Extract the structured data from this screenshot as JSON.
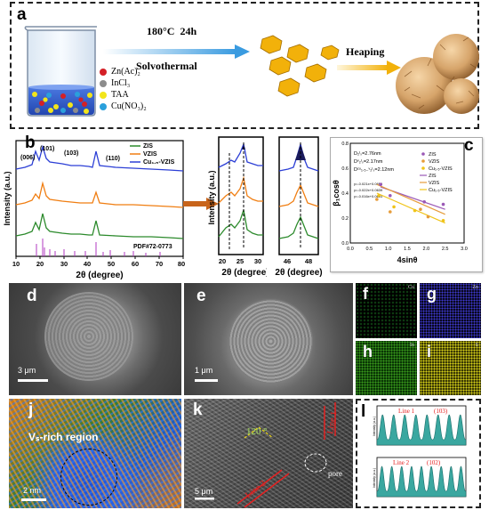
{
  "panel_letters": {
    "a": "a",
    "b": "b",
    "c": "c",
    "d": "d",
    "e": "e",
    "f": "f",
    "g": "g",
    "h": "h",
    "i": "i",
    "j": "j",
    "k": "k",
    "l": "l"
  },
  "panel_a": {
    "condition_temp": "180°C",
    "condition_time": "24h",
    "method": "Solvothermal",
    "heaping": "Heaping",
    "legend": [
      {
        "label": "Zn(Ac)₂",
        "color": "#d42027"
      },
      {
        "label": "InCl₃",
        "color": "#8c8c8c"
      },
      {
        "label": "TAA",
        "color": "#f2e51a"
      },
      {
        "label": "Cu(NO₃)₂",
        "color": "#2aa0dc"
      }
    ]
  },
  "panel_b": {
    "ylabel": "Intensity (a.u.)",
    "xlabel": "2θ (degree)",
    "peaks": [
      "(006)",
      "(101)",
      "(103)",
      "(110)"
    ],
    "pdf": "PDF#72-0773",
    "legend": [
      "ZIS",
      "VZIS",
      "Cu₁.₅-VZIS"
    ],
    "xticks": [
      "10",
      "20",
      "30",
      "40",
      "50",
      "60",
      "70",
      "80"
    ],
    "zoom1_xticks": [
      "20",
      "25",
      "30"
    ],
    "zoom2_xticks": [
      "46",
      "48"
    ],
    "zoom1_xlabel": "2θ (degree)",
    "zoom2_xlabel": "2θ (degree)",
    "zoom1_ylabel": "Intensity (a.u.)"
  },
  "chart_data": {
    "type": "scatter",
    "ylabel": "β₁cosθ",
    "xlabel": "4sinθ",
    "xlim": [
      0.0,
      3.0
    ],
    "ylim": [
      0.0,
      0.8
    ],
    "xticks": [
      "0.0",
      "0.5",
      "1.0",
      "1.5",
      "2.0",
      "2.5",
      "3.0"
    ],
    "yticks": [
      "0.0",
      "0.2",
      "0.4",
      "0.6",
      "0.8"
    ],
    "sizes": [
      "D₂ᴵₛ=2.76nm",
      "Dᵛ₂ᴵₛ=2.17nm",
      "Dᶜᵘ₁.₅₋ᵛ₂ᴵₛ=2.12nm"
    ],
    "equations": [
      "y=-0.021x+0.0655",
      "y=-0.022x+0.0639",
      "y=-0.016x+0.0603"
    ],
    "series": [
      {
        "name": "ZIS",
        "color": "#9b59b6",
        "x": [
          0.8,
          1.05,
          1.95,
          2.45
        ],
        "y": [
          0.47,
          0.38,
          0.33,
          0.31
        ],
        "fit": [
          [
            0.8,
            0.45
          ],
          [
            2.5,
            0.27
          ]
        ]
      },
      {
        "name": "VZIS",
        "color": "#e69c3a",
        "x": [
          0.7,
          1.05,
          1.85,
          2.05
        ],
        "y": [
          0.35,
          0.25,
          0.27,
          0.21
        ],
        "fit": [
          [
            0.7,
            0.47
          ],
          [
            2.5,
            0.23
          ]
        ]
      },
      {
        "name": "Cu₁.₅-VZIS",
        "color": "#f0c419",
        "x": [
          0.75,
          1.15,
          1.7,
          2.45
        ],
        "y": [
          0.38,
          0.29,
          0.26,
          0.18
        ],
        "fit": [
          [
            0.7,
            0.4
          ],
          [
            2.5,
            0.16
          ]
        ]
      }
    ]
  },
  "panel_d": {
    "scale": "3 μm"
  },
  "panel_e": {
    "scale": "1 μm"
  },
  "panel_f": {
    "element": "Cu"
  },
  "panel_g": {
    "element": "Zn"
  },
  "panel_h": {
    "element": "In"
  },
  "panel_i": {
    "element": "S"
  },
  "panel_j": {
    "region": "Vₛ-rich region",
    "scale": "2 nm"
  },
  "panel_k": {
    "angle": "120 °",
    "line1": "Line 1",
    "line2": "Line 2",
    "pore": "pore",
    "scale": "5 μm"
  },
  "panel_l": {
    "top_line": "Line 1",
    "top_plane": "(103)",
    "bottom_line": "Line 2",
    "bottom_plane": "(102)",
    "ylabel": "Intensity (a.u.)"
  }
}
